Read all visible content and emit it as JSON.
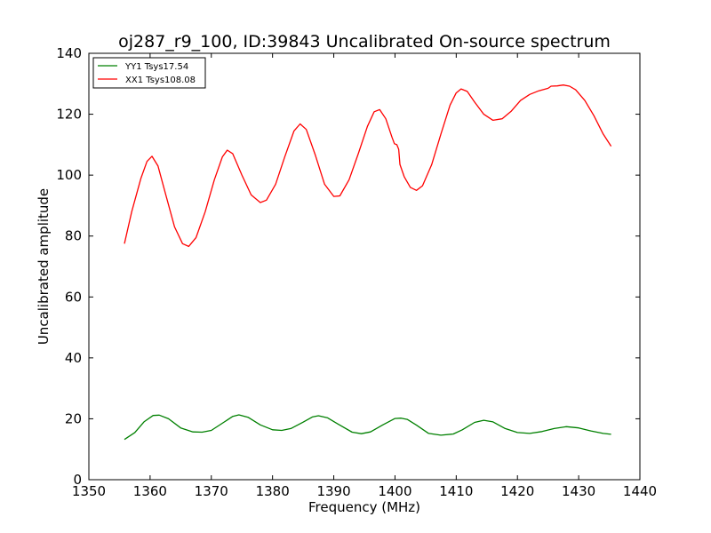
{
  "chart_data": {
    "type": "line",
    "title": "oj287_r9_100, ID:39843 Uncalibrated On-source spectrum",
    "xlabel": "Frequency (MHz)",
    "ylabel": "Uncalibrated amplitude",
    "xlim": [
      1350,
      1440
    ],
    "ylim": [
      0,
      140
    ],
    "xticks": [
      1350,
      1360,
      1370,
      1380,
      1390,
      1400,
      1410,
      1420,
      1430,
      1440
    ],
    "yticks": [
      0,
      20,
      40,
      60,
      80,
      100,
      120,
      140
    ],
    "grid": false,
    "legend": "top-left",
    "series": [
      {
        "name": "YY1 Tsys17.54",
        "color": "#008000",
        "points": [
          [
            1355.8,
            13.2
          ],
          [
            1357.5,
            15.5
          ],
          [
            1359.0,
            19.0
          ],
          [
            1360.5,
            21.1
          ],
          [
            1361.5,
            21.2
          ],
          [
            1363.0,
            20.0
          ],
          [
            1365.0,
            17.0
          ],
          [
            1367.0,
            15.7
          ],
          [
            1368.5,
            15.6
          ],
          [
            1370.0,
            16.2
          ],
          [
            1372.0,
            18.8
          ],
          [
            1373.5,
            20.8
          ],
          [
            1374.5,
            21.3
          ],
          [
            1376.0,
            20.5
          ],
          [
            1378.0,
            18.0
          ],
          [
            1380.0,
            16.4
          ],
          [
            1381.5,
            16.2
          ],
          [
            1383.0,
            16.8
          ],
          [
            1385.0,
            18.9
          ],
          [
            1386.5,
            20.6
          ],
          [
            1387.5,
            21.0
          ],
          [
            1389.0,
            20.3
          ],
          [
            1391.0,
            17.9
          ],
          [
            1393.0,
            15.6
          ],
          [
            1394.5,
            15.1
          ],
          [
            1396.0,
            15.7
          ],
          [
            1398.0,
            18.0
          ],
          [
            1400.0,
            20.1
          ],
          [
            1401.0,
            20.2
          ],
          [
            1402.0,
            19.8
          ],
          [
            1403.5,
            17.9
          ],
          [
            1405.5,
            15.2
          ],
          [
            1407.5,
            14.6
          ],
          [
            1409.5,
            15.0
          ],
          [
            1411.0,
            16.4
          ],
          [
            1413.0,
            18.8
          ],
          [
            1414.5,
            19.5
          ],
          [
            1416.0,
            19.0
          ],
          [
            1418.0,
            16.8
          ],
          [
            1420.0,
            15.5
          ],
          [
            1422.0,
            15.2
          ],
          [
            1424.0,
            15.8
          ],
          [
            1426.0,
            16.8
          ],
          [
            1428.0,
            17.4
          ],
          [
            1430.0,
            17.0
          ],
          [
            1432.0,
            16.0
          ],
          [
            1434.0,
            15.2
          ],
          [
            1435.3,
            14.9
          ]
        ]
      },
      {
        "name": "XX1 Tsys108.08",
        "color": "#ff0000",
        "points": [
          [
            1355.8,
            77.5
          ],
          [
            1357.0,
            88.0
          ],
          [
            1358.5,
            99.0
          ],
          [
            1359.5,
            104.5
          ],
          [
            1360.3,
            106.2
          ],
          [
            1361.3,
            103.0
          ],
          [
            1362.5,
            94.0
          ],
          [
            1364.0,
            83.0
          ],
          [
            1365.3,
            77.5
          ],
          [
            1366.3,
            76.6
          ],
          [
            1367.5,
            79.5
          ],
          [
            1369.0,
            88.0
          ],
          [
            1370.5,
            98.5
          ],
          [
            1371.8,
            106.0
          ],
          [
            1372.6,
            108.2
          ],
          [
            1373.5,
            107.0
          ],
          [
            1375.0,
            100.0
          ],
          [
            1376.5,
            93.5
          ],
          [
            1378.0,
            91.0
          ],
          [
            1379.0,
            91.8
          ],
          [
            1380.5,
            97.0
          ],
          [
            1382.0,
            106.0
          ],
          [
            1383.5,
            114.5
          ],
          [
            1384.5,
            116.8
          ],
          [
            1385.5,
            115.0
          ],
          [
            1387.0,
            106.5
          ],
          [
            1388.5,
            97.0
          ],
          [
            1390.0,
            93.0
          ],
          [
            1391.0,
            93.2
          ],
          [
            1392.5,
            98.5
          ],
          [
            1394.0,
            107.0
          ],
          [
            1395.5,
            116.0
          ],
          [
            1396.6,
            120.8
          ],
          [
            1397.5,
            121.5
          ],
          [
            1398.5,
            118.5
          ],
          [
            1399.5,
            112.5
          ],
          [
            1399.9,
            110.3
          ],
          [
            1400.3,
            110.0
          ],
          [
            1400.6,
            108.5
          ],
          [
            1400.8,
            103.5
          ],
          [
            1401.5,
            99.5
          ],
          [
            1402.5,
            96.0
          ],
          [
            1403.5,
            95.0
          ],
          [
            1404.5,
            96.5
          ],
          [
            1406.0,
            103.5
          ],
          [
            1407.5,
            113.5
          ],
          [
            1409.0,
            123.0
          ],
          [
            1410.0,
            127.0
          ],
          [
            1410.8,
            128.3
          ],
          [
            1411.8,
            127.5
          ],
          [
            1413.0,
            124.0
          ],
          [
            1414.5,
            120.0
          ],
          [
            1416.0,
            118.0
          ],
          [
            1417.5,
            118.5
          ],
          [
            1419.0,
            121.0
          ],
          [
            1420.5,
            124.5
          ],
          [
            1422.0,
            126.5
          ],
          [
            1423.5,
            127.7
          ],
          [
            1425.0,
            128.5
          ],
          [
            1425.5,
            129.2
          ],
          [
            1426.5,
            129.3
          ],
          [
            1427.5,
            129.6
          ],
          [
            1428.5,
            129.2
          ],
          [
            1429.5,
            128.0
          ],
          [
            1431.0,
            124.5
          ],
          [
            1432.5,
            119.5
          ],
          [
            1434.0,
            113.5
          ],
          [
            1435.3,
            109.5
          ]
        ]
      }
    ]
  }
}
